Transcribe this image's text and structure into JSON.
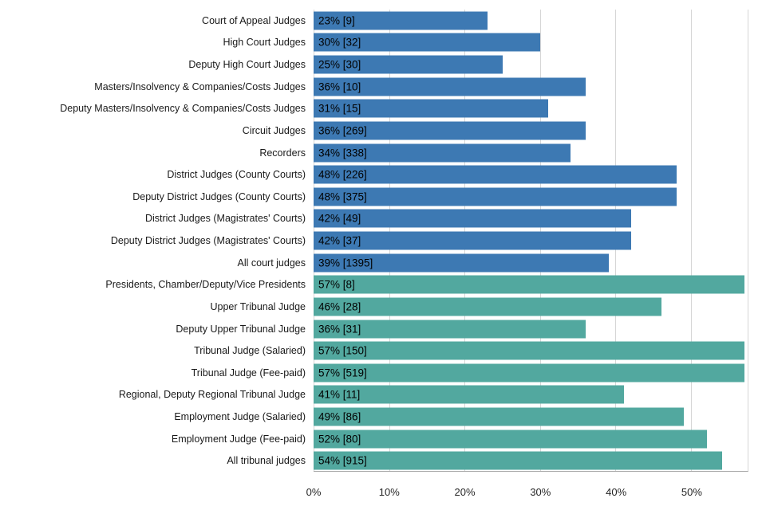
{
  "chart_data": {
    "type": "bar",
    "orientation": "horizontal",
    "title": "",
    "xlabel": "",
    "ylabel": "",
    "xlim": [
      0,
      57.5
    ],
    "x_ticks": [
      0,
      10,
      20,
      30,
      40,
      50
    ],
    "x_tick_labels": [
      "0%",
      "10%",
      "20%",
      "30%",
      "40%",
      "50%"
    ],
    "grid": true,
    "legend_position": "none",
    "colors": {
      "court": "#3d79b3",
      "tribunal": "#52a89f",
      "gridline": "#d6d6d6",
      "axis_line": "#a9a9a9"
    },
    "bars": [
      {
        "label": "Court of Appeal Judges",
        "value": 23,
        "count": 9,
        "group": "court"
      },
      {
        "label": "High Court Judges",
        "value": 30,
        "count": 32,
        "group": "court"
      },
      {
        "label": "Deputy High Court Judges",
        "value": 25,
        "count": 30,
        "group": "court"
      },
      {
        "label": "Masters/Insolvency & Companies/Costs Judges",
        "value": 36,
        "count": 10,
        "group": "court"
      },
      {
        "label": "Deputy Masters/Insolvency & Companies/Costs Judges",
        "value": 31,
        "count": 15,
        "group": "court"
      },
      {
        "label": "Circuit Judges",
        "value": 36,
        "count": 269,
        "group": "court"
      },
      {
        "label": "Recorders",
        "value": 34,
        "count": 338,
        "group": "court"
      },
      {
        "label": "District Judges (County Courts)",
        "value": 48,
        "count": 226,
        "group": "court"
      },
      {
        "label": "Deputy District Judges (County Courts)",
        "value": 48,
        "count": 375,
        "group": "court"
      },
      {
        "label": "District Judges (Magistrates' Courts)",
        "value": 42,
        "count": 49,
        "group": "court"
      },
      {
        "label": "Deputy District Judges (Magistrates' Courts)",
        "value": 42,
        "count": 37,
        "group": "court"
      },
      {
        "label": "All court judges",
        "value": 39,
        "count": 1395,
        "group": "court"
      },
      {
        "label": "Presidents, Chamber/Deputy/Vice Presidents",
        "value": 57,
        "count": 8,
        "group": "tribunal"
      },
      {
        "label": "Upper Tribunal Judge",
        "value": 46,
        "count": 28,
        "group": "tribunal"
      },
      {
        "label": "Deputy Upper Tribunal Judge",
        "value": 36,
        "count": 31,
        "group": "tribunal"
      },
      {
        "label": "Tribunal Judge (Salaried)",
        "value": 57,
        "count": 150,
        "group": "tribunal"
      },
      {
        "label": "Tribunal Judge (Fee-paid)",
        "value": 57,
        "count": 519,
        "group": "tribunal"
      },
      {
        "label": "Regional, Deputy Regional Tribunal Judge",
        "value": 41,
        "count": 11,
        "group": "tribunal"
      },
      {
        "label": "Employment Judge (Salaried)",
        "value": 49,
        "count": 86,
        "group": "tribunal"
      },
      {
        "label": "Employment Judge (Fee-paid)",
        "value": 52,
        "count": 80,
        "group": "tribunal"
      },
      {
        "label": "All tribunal judges",
        "value": 54,
        "count": 915,
        "group": "tribunal"
      }
    ]
  }
}
